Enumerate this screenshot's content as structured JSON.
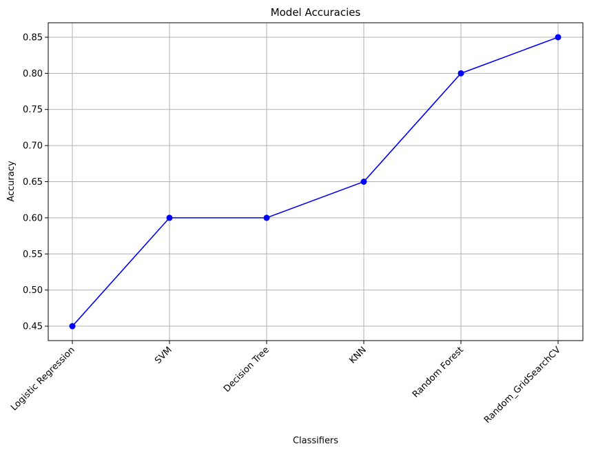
{
  "chart_data": {
    "type": "line",
    "title": "Model Accuracies",
    "xlabel": "Classifiers",
    "ylabel": "Accuracy",
    "categories": [
      "Logistic Regression",
      "SVM",
      "Decision Tree",
      "KNN",
      "Random Forest",
      "Random_GridSearchCV"
    ],
    "series": [
      {
        "values": [
          0.45,
          0.6,
          0.6,
          0.65,
          0.8,
          0.85
        ]
      }
    ],
    "ylim": [
      0.43,
      0.87
    ],
    "yticks": [
      0.45,
      0.5,
      0.55,
      0.6,
      0.65,
      0.7,
      0.75,
      0.8,
      0.85
    ],
    "ytick_labels": [
      "0.45",
      "0.50",
      "0.55",
      "0.60",
      "0.65",
      "0.70",
      "0.75",
      "0.80",
      "0.85"
    ],
    "grid": true,
    "line_color": "#0000ff",
    "marker": "circle"
  }
}
